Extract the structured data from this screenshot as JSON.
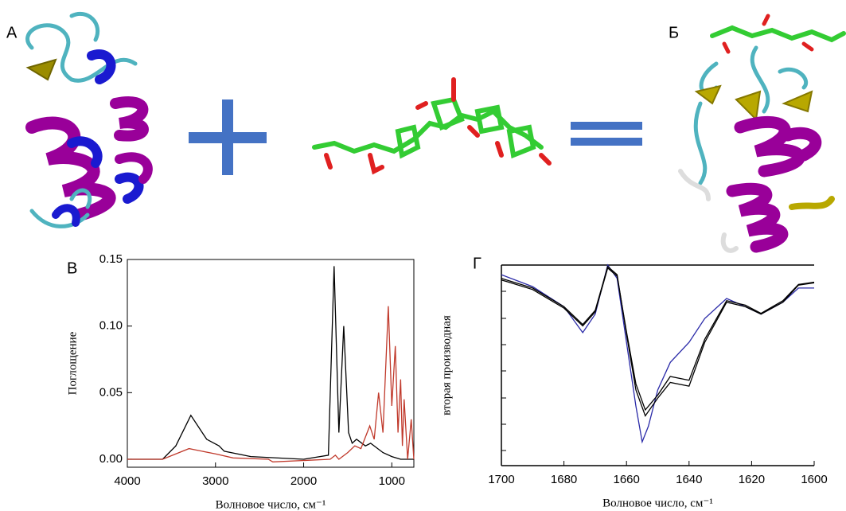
{
  "panel_labels": [
    "А",
    "Б",
    "В",
    "Г"
  ],
  "chart_data": [
    {
      "type": "line",
      "xlabel": "Волновое число, см⁻¹",
      "ylabel": "Поглощение",
      "xlim": [
        4000,
        750
      ],
      "ylim": [
        -0.006,
        0.15
      ],
      "xticks": [
        4000,
        3000,
        2000,
        1000
      ],
      "yticks": [
        {
          "value": 0,
          "label": "0.00"
        },
        {
          "value": 0.05,
          "label": "0.05"
        },
        {
          "value": 0.1,
          "label": "0.10"
        },
        {
          "value": 0.15,
          "label": "0.15"
        }
      ],
      "series": [
        {
          "color": "#000000",
          "x": [
            4000,
            3600,
            3450,
            3280,
            3100,
            2960,
            2900,
            2600,
            2000,
            1720,
            1655,
            1600,
            1545,
            1490,
            1450,
            1400,
            1300,
            1240,
            1100,
            1000,
            900,
            750
          ],
          "values": [
            0,
            0,
            0.01,
            0.033,
            0.015,
            0.01,
            0.006,
            0.002,
            0,
            0.003,
            0.145,
            0.02,
            0.1,
            0.02,
            0.012,
            0.015,
            0.01,
            0.012,
            0.005,
            0.002,
            0,
            0
          ]
        },
        {
          "color": "#c0392b",
          "x": [
            4000,
            3600,
            3300,
            3000,
            2800,
            2400,
            2350,
            1700,
            1640,
            1600,
            1500,
            1420,
            1350,
            1250,
            1200,
            1150,
            1100,
            1040,
            1000,
            960,
            930,
            900,
            880,
            860,
            820,
            780,
            750
          ],
          "values": [
            0,
            0,
            0.008,
            0.004,
            0.001,
            0,
            -0.002,
            0,
            0.003,
            0,
            0.005,
            0.01,
            0.008,
            0.025,
            0.015,
            0.05,
            0.02,
            0.115,
            0.04,
            0.085,
            0.02,
            0.06,
            0.01,
            0.045,
            0,
            0.03,
            0
          ]
        }
      ]
    },
    {
      "type": "line",
      "xlabel": "Волновое число, см⁻¹",
      "ylabel": "вторая производная",
      "xlim": [
        1700,
        1600
      ],
      "ylim": [
        -1.5,
        1.2
      ],
      "xticks": [
        1700,
        1680,
        1660,
        1640,
        1620,
        1600
      ],
      "series": [
        {
          "color": "#2a2aa8",
          "x": [
            1700,
            1690,
            1680,
            1674,
            1670,
            1666,
            1663,
            1660,
            1657,
            1655,
            1653,
            1650,
            1646,
            1640,
            1635,
            1628,
            1622,
            1617,
            1610,
            1605,
            1600
          ],
          "values": [
            1.07,
            0.91,
            0.64,
            0.29,
            0.54,
            1.2,
            1.02,
            0.16,
            -0.7,
            -1.18,
            -0.97,
            -0.48,
            -0.11,
            0.16,
            0.48,
            0.75,
            0.64,
            0.54,
            0.7,
            0.89,
            0.89
          ]
        },
        {
          "color": "#000000",
          "x": [
            1700,
            1690,
            1680,
            1674,
            1670,
            1666,
            1663,
            1660,
            1657,
            1654,
            1650,
            1646,
            1640,
            1635,
            1628,
            1622,
            1617,
            1610,
            1605,
            1600
          ],
          "values": [
            1.02,
            0.89,
            0.64,
            0.4,
            0.59,
            1.18,
            1.07,
            0.27,
            -0.48,
            -0.83,
            -0.59,
            -0.38,
            -0.43,
            0.16,
            0.7,
            0.64,
            0.54,
            0.7,
            0.93,
            0.96
          ]
        },
        {
          "color": "#000000",
          "x": [
            1700,
            1690,
            1680,
            1674,
            1670,
            1666,
            1663,
            1660,
            1657,
            1654,
            1650,
            1646,
            1640,
            1635,
            1628,
            1622,
            1617,
            1610,
            1605,
            1600
          ],
          "values": [
            1.0,
            0.87,
            0.62,
            0.38,
            0.57,
            1.16,
            1.05,
            0.3,
            -0.4,
            -0.75,
            -0.55,
            -0.3,
            -0.35,
            0.2,
            0.72,
            0.66,
            0.55,
            0.72,
            0.94,
            0.97
          ]
        }
      ]
    }
  ]
}
